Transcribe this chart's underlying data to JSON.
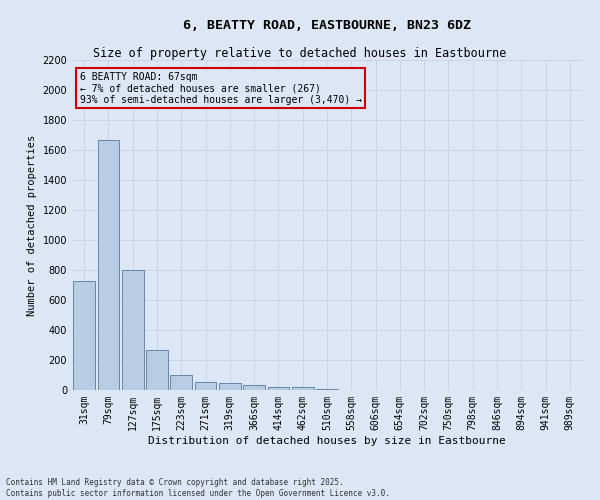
{
  "title_line1": "6, BEATTY ROAD, EASTBOURNE, BN23 6DZ",
  "title_line2": "Size of property relative to detached houses in Eastbourne",
  "xlabel": "Distribution of detached houses by size in Eastbourne",
  "ylabel": "Number of detached properties",
  "annotation_title": "6 BEATTY ROAD: 67sqm",
  "annotation_line2": "← 7% of detached houses are smaller (267)",
  "annotation_line3": "93% of semi-detached houses are larger (3,470) →",
  "footer_line1": "Contains HM Land Registry data © Crown copyright and database right 2025.",
  "footer_line2": "Contains public sector information licensed under the Open Government Licence v3.0.",
  "categories": [
    "31sqm",
    "79sqm",
    "127sqm",
    "175sqm",
    "223sqm",
    "271sqm",
    "319sqm",
    "366sqm",
    "414sqm",
    "462sqm",
    "510sqm",
    "558sqm",
    "606sqm",
    "654sqm",
    "702sqm",
    "750sqm",
    "798sqm",
    "846sqm",
    "894sqm",
    "941sqm",
    "989sqm"
  ],
  "values": [
    730,
    1670,
    800,
    270,
    100,
    55,
    50,
    35,
    20,
    18,
    8,
    0,
    0,
    0,
    0,
    0,
    0,
    0,
    0,
    0,
    0
  ],
  "bar_color": "#b8cce4",
  "bar_edge_color": "#5878a0",
  "ylim": [
    0,
    2200
  ],
  "yticks": [
    0,
    200,
    400,
    600,
    800,
    1000,
    1200,
    1400,
    1600,
    1800,
    2000,
    2200
  ],
  "grid_color": "#c8d4e8",
  "bg_color": "#dce6f5",
  "annotation_box_color": "#cc0000",
  "title_fontsize": 9.5,
  "subtitle_fontsize": 8.5,
  "tick_fontsize": 7,
  "ylabel_fontsize": 7.5,
  "xlabel_fontsize": 8
}
